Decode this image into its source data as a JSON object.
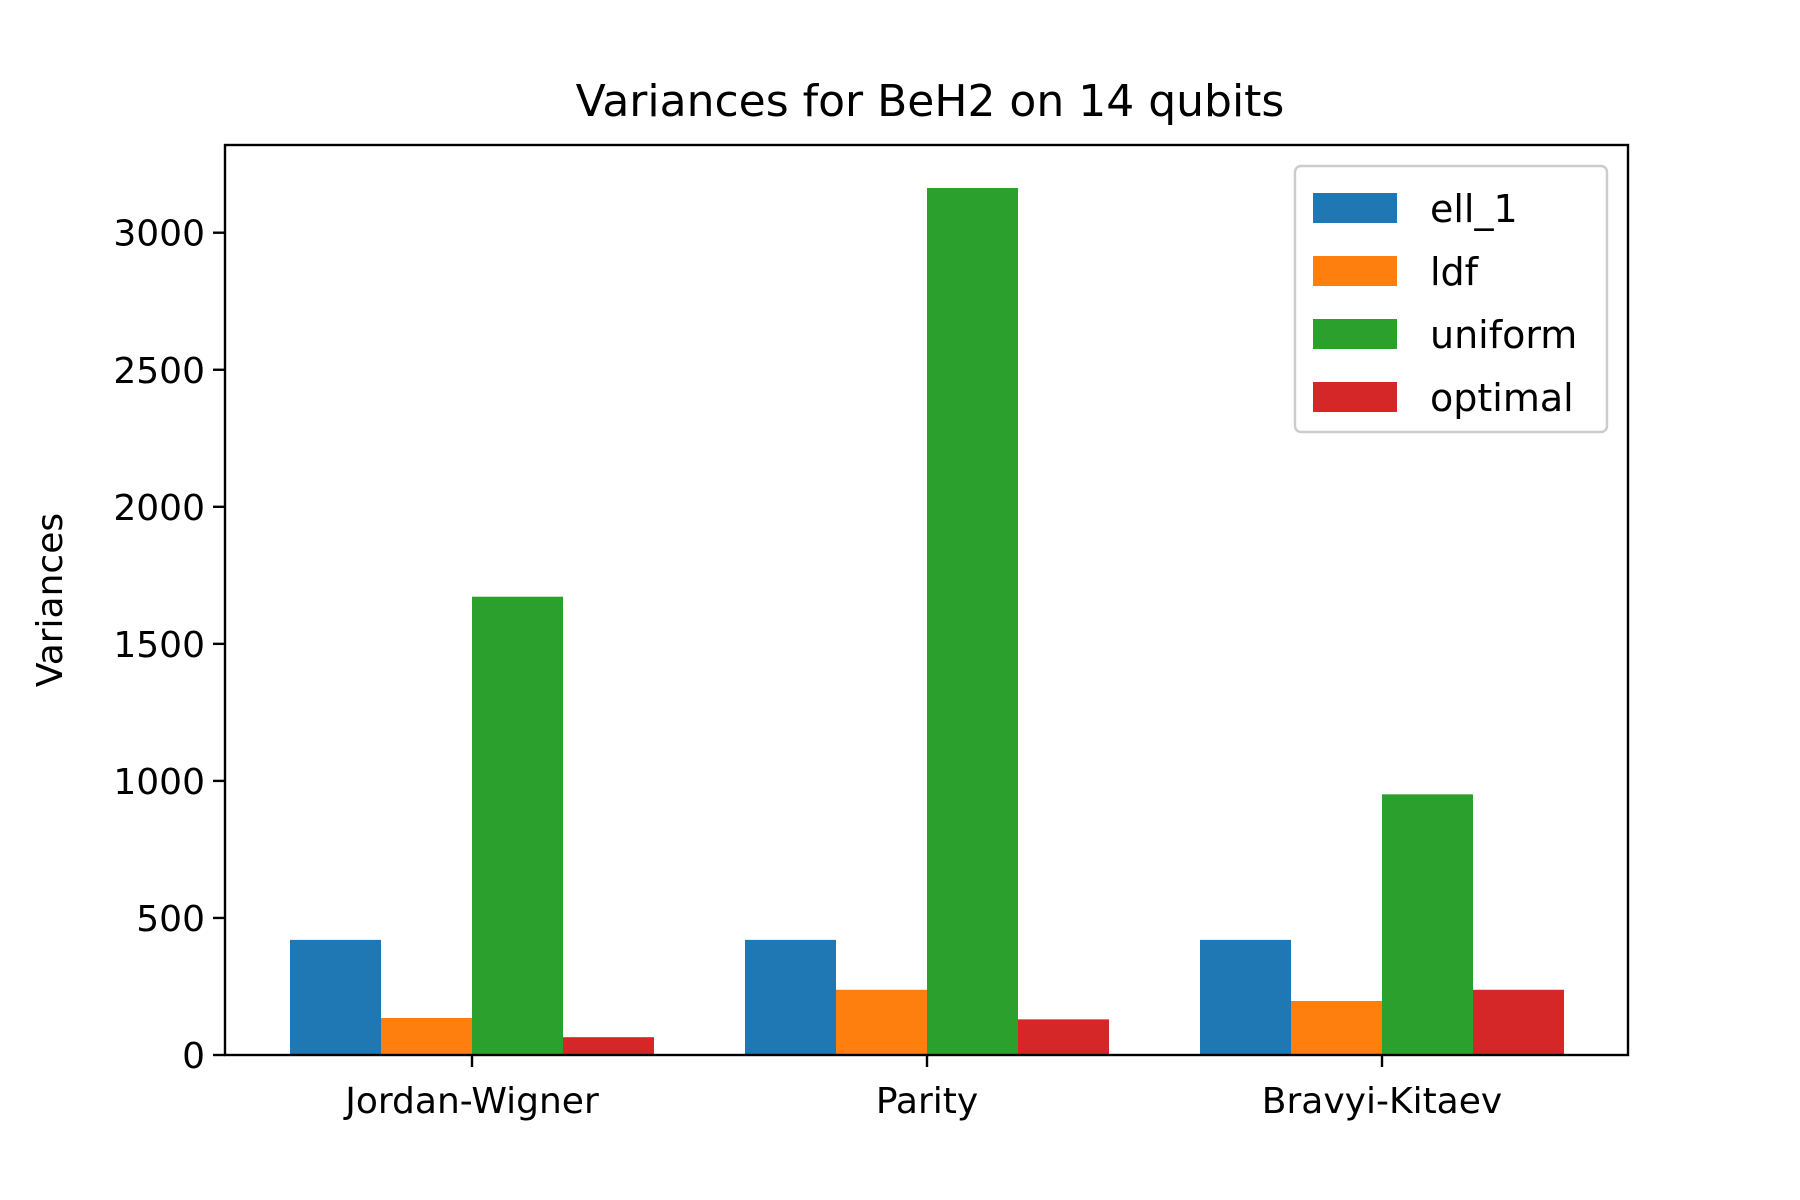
{
  "chart_data": {
    "type": "bar",
    "title": "Variances for BeH2 on 14 qubits",
    "xlabel": "",
    "ylabel": "Variances",
    "categories": [
      "Jordan-Wigner",
      "Parity",
      "Bravyi-Kitaev"
    ],
    "series": [
      {
        "name": "ell_1",
        "color": "#1f77b4",
        "values": [
          420,
          420,
          420
        ]
      },
      {
        "name": "ldf",
        "color": "#ff7f0e",
        "values": [
          135,
          238,
          197
        ]
      },
      {
        "name": "uniform",
        "color": "#2ca02c",
        "values": [
          1672,
          3163,
          951
        ]
      },
      {
        "name": "optimal",
        "color": "#d62728",
        "values": [
          65,
          130,
          238
        ]
      }
    ],
    "ylim": [
      0,
      3320
    ],
    "yticks": [
      0,
      500,
      1000,
      1500,
      2000,
      2500,
      3000
    ],
    "ytick_labels": [
      "0",
      "500",
      "1000",
      "1500",
      "2000",
      "2500",
      "3000"
    ],
    "grid": false,
    "legend_position": "top-right"
  }
}
